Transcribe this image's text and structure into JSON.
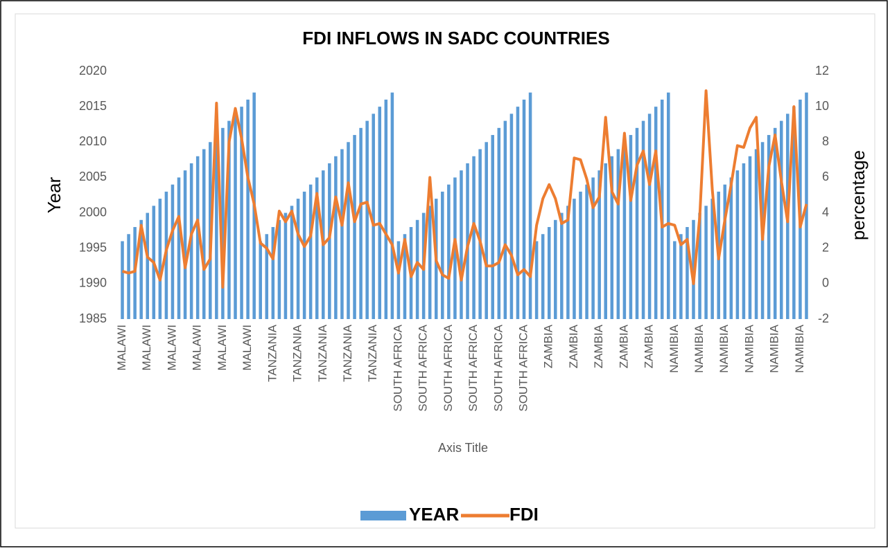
{
  "chart_data": {
    "type": "bar",
    "title": "FDI INFLOWS IN SADC COUNTRIES",
    "x_label": "Axis Title",
    "y_label": "Year",
    "y2_label": "percentage",
    "categories": [
      "MALAWI",
      null,
      null,
      null,
      "MALAWI",
      null,
      null,
      null,
      "MALAWI",
      null,
      null,
      null,
      "MALAWI",
      null,
      null,
      null,
      "MALAWI",
      null,
      null,
      null,
      "MALAWI",
      null,
      null,
      null,
      "TANZANIA",
      null,
      null,
      null,
      "TANZANIA",
      null,
      null,
      null,
      "TANZANIA",
      null,
      null,
      null,
      "TANZANIA",
      null,
      null,
      null,
      "TANZANIA",
      null,
      null,
      null,
      "SOUTH AFRICA",
      null,
      null,
      null,
      "SOUTH AFRICA",
      null,
      null,
      null,
      "SOUTH AFRICA",
      null,
      null,
      null,
      "SOUTH AFRICA",
      null,
      null,
      null,
      "SOUTH AFRICA",
      null,
      null,
      null,
      "SOUTH AFRICA",
      null,
      null,
      null,
      "ZAMBIA",
      null,
      null,
      null,
      "ZAMBIA",
      null,
      null,
      null,
      "ZAMBIA",
      null,
      null,
      null,
      "ZAMBIA",
      null,
      null,
      null,
      "ZAMBIA",
      null,
      null,
      null,
      "NAMIBIA",
      null,
      null,
      null,
      "NAMIBIA",
      null,
      null,
      null,
      "NAMIBIA",
      null,
      null,
      null,
      "NAMIBIA",
      null,
      null,
      null,
      "NAMIBIA",
      null,
      null,
      null,
      "NAMIBIA",
      null
    ],
    "series": [
      {
        "name": "YEAR",
        "type": "bar",
        "color": "#5b9bd5",
        "values": [
          1996,
          1997,
          1998,
          1999,
          2000,
          2001,
          2002,
          2003,
          2004,
          2005,
          2006,
          2007,
          2008,
          2009,
          2010,
          2011,
          2012,
          2013,
          2014,
          2015,
          2016,
          2017,
          1996,
          1997,
          1998,
          1999,
          2000,
          2001,
          2002,
          2003,
          2004,
          2005,
          2006,
          2007,
          2008,
          2009,
          2010,
          2011,
          2012,
          2013,
          2014,
          2015,
          2016,
          2017,
          1996,
          1997,
          1998,
          1999,
          2000,
          2001,
          2002,
          2003,
          2004,
          2005,
          2006,
          2007,
          2008,
          2009,
          2010,
          2011,
          2012,
          2013,
          2014,
          2015,
          2016,
          2017,
          1996,
          1997,
          1998,
          1999,
          2000,
          2001,
          2002,
          2003,
          2004,
          2005,
          2006,
          2007,
          2008,
          2009,
          2010,
          2011,
          2012,
          2013,
          2014,
          2015,
          2016,
          2017,
          1996,
          1997,
          1998,
          1999,
          2000,
          2001,
          2002,
          2003,
          2004,
          2005,
          2006,
          2007,
          2008,
          2009,
          2010,
          2011,
          2012,
          2013,
          2014,
          2015,
          2016,
          2017
        ]
      },
      {
        "name": "FDI",
        "type": "line",
        "axis": "y2",
        "color": "#ed7d31",
        "values": [
          0.7,
          0.6,
          0.7,
          3.3,
          1.5,
          1.2,
          0.2,
          1.9,
          3.0,
          3.8,
          0.9,
          2.8,
          3.6,
          0.8,
          1.4,
          10.2,
          -0.2,
          8.0,
          9.9,
          8.2,
          6.0,
          4.5,
          2.3,
          2.0,
          1.4,
          4.1,
          3.5,
          4.1,
          2.8,
          2.1,
          2.7,
          5.1,
          2.2,
          2.6,
          4.9,
          3.3,
          5.7,
          3.5,
          4.5,
          4.6,
          3.3,
          3.4,
          2.8,
          2.2,
          0.6,
          2.5,
          0.4,
          1.2,
          0.8,
          6.0,
          1.3,
          0.5,
          0.3,
          2.5,
          0.2,
          2.1,
          3.4,
          2.4,
          1.0,
          1.0,
          1.2,
          2.2,
          1.6,
          0.5,
          0.8,
          0.4,
          3.3,
          4.8,
          5.6,
          4.8,
          3.4,
          3.6,
          7.1,
          7.0,
          5.9,
          4.3,
          4.9,
          9.4,
          5.2,
          4.5,
          8.5,
          4.7,
          6.7,
          7.5,
          5.6,
          7.5,
          3.2,
          3.4,
          3.3,
          2.2,
          2.5,
          0.0,
          3.8,
          10.9,
          5.3,
          1.4,
          3.6,
          5.6,
          7.8,
          7.7,
          8.8,
          9.4,
          2.5,
          6.6,
          8.4,
          5.8,
          3.5,
          10.0,
          3.2,
          4.5
        ]
      }
    ],
    "ylim": [
      1985,
      2020
    ],
    "yticks": [
      1985,
      1990,
      1995,
      2000,
      2005,
      2010,
      2015,
      2020
    ],
    "y2lim": [
      -2,
      12
    ],
    "y2ticks": [
      -2,
      0,
      2,
      4,
      6,
      8,
      10,
      12
    ],
    "legend": "bottom"
  }
}
